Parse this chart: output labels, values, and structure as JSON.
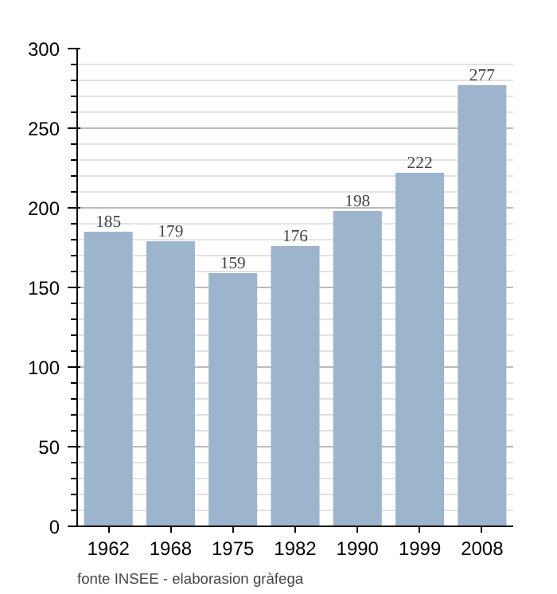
{
  "chart_data": {
    "type": "bar",
    "categories": [
      "1962",
      "1968",
      "1975",
      "1982",
      "1990",
      "1999",
      "2008"
    ],
    "values": [
      185,
      179,
      159,
      176,
      198,
      222,
      277
    ],
    "color": "#9db4cd",
    "ylim": [
      0,
      300
    ],
    "yticks": [
      0,
      50,
      100,
      150,
      200,
      250,
      300
    ],
    "grid": "y",
    "data_labels": true,
    "annotations": [
      "fonte INSEE - elaborasion gràfega"
    ]
  }
}
